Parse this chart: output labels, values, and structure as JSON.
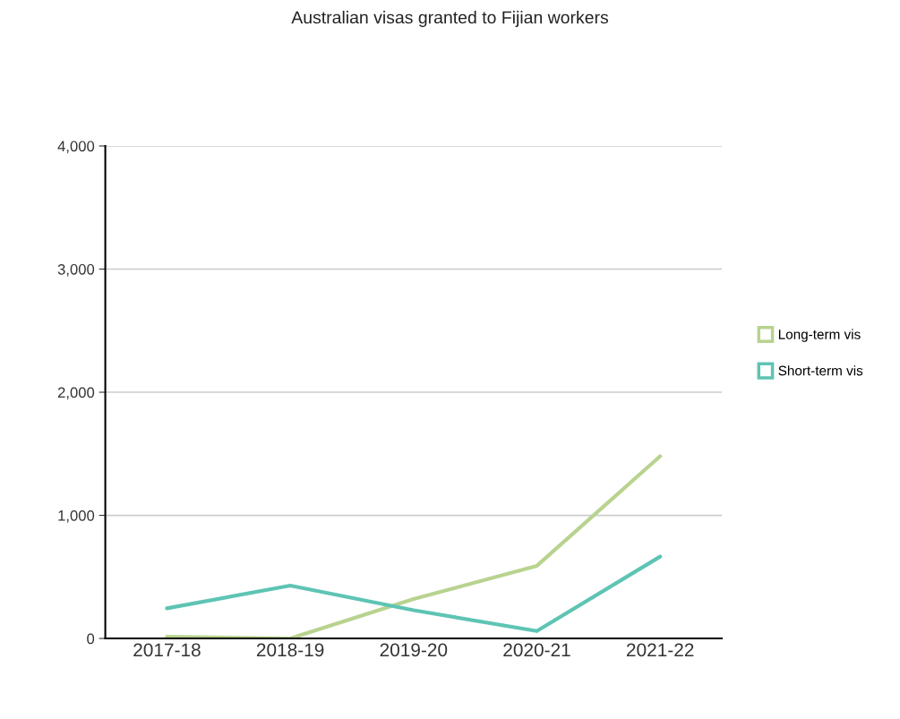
{
  "chart_data": {
    "type": "line",
    "title": "Australian visas granted to Fijian workers",
    "categories": [
      "2017-18",
      "2018-19",
      "2019-20",
      "2020-21",
      "2021-22"
    ],
    "series": [
      {
        "name": "Long-term vis",
        "color": "#b8d38f",
        "values": [
          15,
          0,
          320,
          590,
          1480
        ]
      },
      {
        "name": "Short-term vis",
        "color": "#5ec4b4",
        "values": [
          245,
          430,
          230,
          60,
          665
        ]
      }
    ],
    "ylim": [
      0,
      4000
    ],
    "yticks": [
      {
        "value": 0,
        "label": "0"
      },
      {
        "value": 1000,
        "label": "1,000"
      },
      {
        "value": 2000,
        "label": "2,000"
      },
      {
        "value": 3000,
        "label": "3,000"
      },
      {
        "value": 4000,
        "label": "4,000"
      }
    ],
    "grid": "y",
    "legend": "right",
    "marker": "none",
    "line_style": "solid"
  }
}
